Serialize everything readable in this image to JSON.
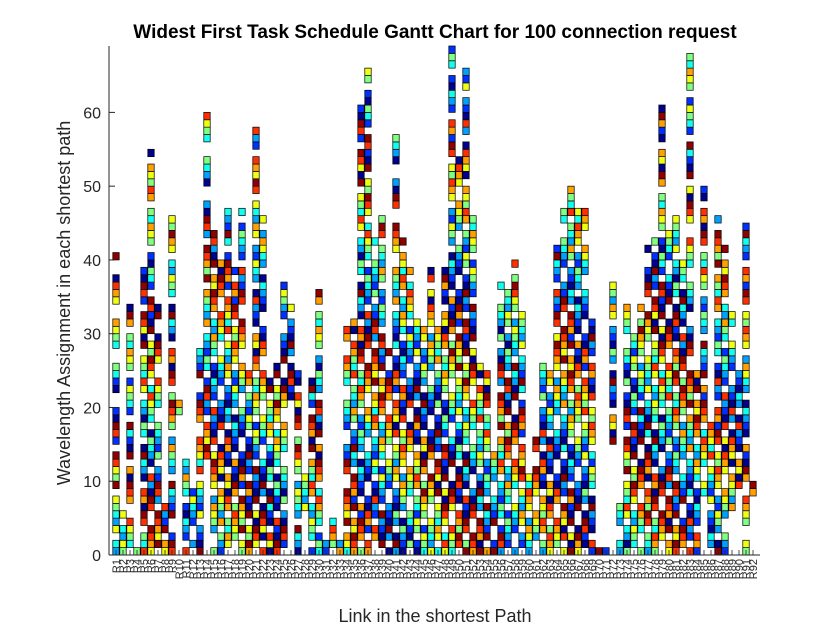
{
  "chart_data": {
    "type": "gantt",
    "title": "Widest First Task Schedule Gantt Chart for 100 connection request",
    "xlabel": "Link in the shortest Path",
    "ylabel": "Wavelength Assignment in each shortest path",
    "ylim": [
      0,
      69
    ],
    "yticks": [
      0,
      10,
      20,
      30,
      40,
      50,
      60
    ],
    "xlim": [
      0,
      93
    ],
    "grid": false,
    "legend": "none",
    "colormap": [
      "#00008f",
      "#0030ff",
      "#00a0ff",
      "#10ffef",
      "#80ff80",
      "#efff10",
      "#ffa000",
      "#ff3000",
      "#8f0000"
    ],
    "xticklabels": [
      "R1",
      "R2",
      "R3",
      "R4",
      "R5",
      "R6",
      "R7",
      "R8",
      "R9",
      "R10",
      "R11",
      "R12",
      "R13",
      "R14",
      "R15",
      "R16",
      "R17",
      "R18",
      "R19",
      "R20",
      "R21",
      "R22",
      "R23",
      "R24",
      "R25",
      "R26",
      "R27",
      "R28",
      "R29",
      "R30",
      "R31",
      "R32",
      "R33",
      "R34",
      "R35",
      "R36",
      "R37",
      "R38",
      "R39",
      "R40",
      "R41",
      "R42",
      "R43",
      "R44",
      "R45",
      "R46",
      "R47",
      "R48",
      "R49",
      "R50",
      "R51",
      "R52",
      "R53",
      "R54",
      "R55",
      "R56",
      "R57",
      "R58",
      "R59",
      "R60",
      "R61",
      "R62",
      "R63",
      "R64",
      "R65",
      "R66",
      "R67",
      "R68",
      "R69",
      "R70",
      "R71",
      "R72",
      "R73",
      "R74",
      "R75",
      "R76",
      "R77",
      "R78",
      "R79",
      "R80",
      "R81",
      "R82",
      "R83",
      "R84",
      "R85",
      "R86",
      "R87",
      "R88",
      "R89",
      "R90",
      "R91",
      "R92"
    ],
    "tasks": [
      [
        1,
        0,
        41
      ],
      [
        2,
        0,
        6
      ],
      [
        3,
        0,
        34
      ],
      [
        4,
        0,
        2
      ],
      [
        5,
        0,
        40
      ],
      [
        6,
        0,
        55
      ],
      [
        7,
        0,
        34
      ],
      [
        8,
        0,
        7
      ],
      [
        9,
        0,
        47
      ],
      [
        10,
        19,
        21
      ],
      [
        11,
        0,
        14
      ],
      [
        12,
        1,
        10
      ],
      [
        13,
        0,
        30
      ],
      [
        14,
        12,
        61
      ],
      [
        15,
        0,
        44
      ],
      [
        16,
        0,
        41
      ],
      [
        17,
        1,
        47
      ],
      [
        18,
        1,
        39
      ],
      [
        19,
        0,
        47
      ],
      [
        20,
        0,
        25
      ],
      [
        21,
        0,
        58
      ],
      [
        22,
        0,
        46
      ],
      [
        23,
        0,
        24
      ],
      [
        24,
        0,
        26
      ],
      [
        25,
        0,
        37
      ],
      [
        26,
        20,
        34
      ],
      [
        27,
        0,
        25
      ],
      [
        28,
        6,
        13
      ],
      [
        29,
        0,
        24
      ],
      [
        30,
        0,
        36
      ],
      [
        31,
        0,
        2
      ],
      [
        32,
        0,
        5
      ],
      [
        33,
        0,
        2
      ],
      [
        34,
        0,
        31
      ],
      [
        35,
        0,
        32
      ],
      [
        36,
        0,
        61
      ],
      [
        37,
        0,
        66
      ],
      [
        38,
        2,
        43
      ],
      [
        39,
        0,
        46
      ],
      [
        40,
        0,
        28
      ],
      [
        41,
        0,
        58
      ],
      [
        42,
        0,
        43
      ],
      [
        43,
        0,
        39
      ],
      [
        44,
        0,
        33
      ],
      [
        45,
        0,
        31
      ],
      [
        46,
        0,
        39
      ],
      [
        47,
        0,
        32
      ],
      [
        48,
        0,
        40
      ],
      [
        49,
        0,
        69
      ],
      [
        50,
        0,
        55
      ],
      [
        51,
        0,
        66
      ],
      [
        52,
        0,
        47
      ],
      [
        53,
        0,
        26
      ],
      [
        54,
        0,
        26
      ],
      [
        55,
        0,
        15
      ],
      [
        56,
        0,
        37
      ],
      [
        57,
        0,
        36
      ],
      [
        58,
        0,
        40
      ],
      [
        59,
        1,
        33
      ],
      [
        60,
        0,
        12
      ],
      [
        61,
        0,
        16
      ],
      [
        62,
        0,
        27
      ],
      [
        63,
        0,
        25
      ],
      [
        64,
        0,
        42
      ],
      [
        65,
        0,
        47
      ],
      [
        66,
        0,
        50
      ],
      [
        67,
        0,
        47
      ],
      [
        68,
        0,
        47
      ],
      [
        69,
        0,
        32
      ],
      [
        70,
        0,
        1
      ],
      [
        71,
        0,
        1
      ],
      [
        72,
        15,
        37
      ],
      [
        73,
        0,
        7
      ],
      [
        74,
        0,
        36
      ],
      [
        75,
        0,
        30
      ],
      [
        76,
        0,
        34
      ],
      [
        77,
        0,
        42
      ],
      [
        78,
        0,
        43
      ],
      [
        79,
        0,
        61
      ],
      [
        80,
        0,
        45
      ],
      [
        81,
        0,
        47
      ],
      [
        82,
        0,
        40
      ],
      [
        83,
        0,
        69
      ],
      [
        84,
        0,
        25
      ],
      [
        85,
        8,
        50
      ],
      [
        86,
        0,
        19
      ],
      [
        87,
        0,
        46
      ],
      [
        88,
        0,
        42
      ],
      [
        89,
        6,
        33
      ],
      [
        90,
        9,
        25
      ],
      [
        91,
        0,
        46
      ],
      [
        92,
        8,
        11
      ]
    ]
  }
}
